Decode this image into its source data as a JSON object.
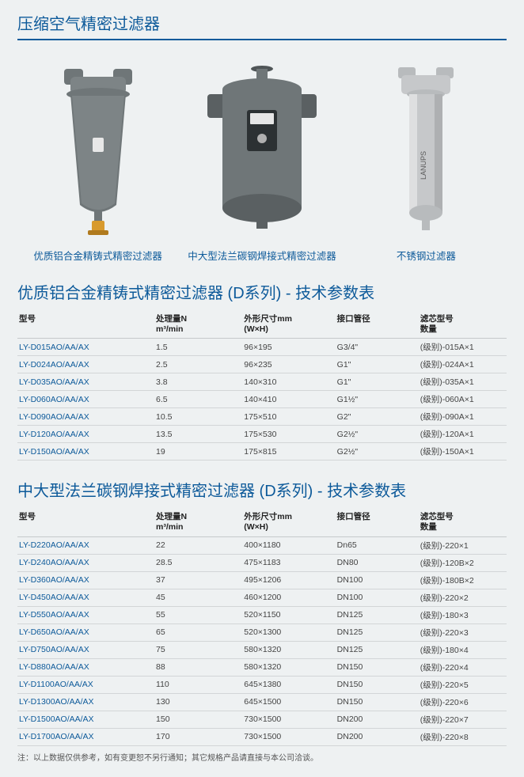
{
  "page_title": "压缩空气精密过滤器",
  "products": [
    {
      "caption": "优质铝合金精铸式精密过滤器"
    },
    {
      "caption": "中大型法兰碳钢焊接式精密过滤器"
    },
    {
      "caption": "不锈钢过滤器"
    }
  ],
  "section1": {
    "title": "优质铝合金精铸式精密过滤器 (D系列) - 技术参数表",
    "headers": {
      "model": "型号",
      "flow_line1": "处理量N",
      "flow_line2": "m³/min",
      "dim_line1": "外形尺寸mm",
      "dim_line2": "(W×H)",
      "port": "接口管径",
      "filter_line1": "滤芯型号",
      "filter_line2": "数量"
    },
    "rows": [
      {
        "model": "LY-D015AO/AA/AX",
        "flow": "1.5",
        "dim": "96×195",
        "port": "G3/4\"",
        "filter": "(级别)-015A×1"
      },
      {
        "model": "LY-D024AO/AA/AX",
        "flow": "2.5",
        "dim": "96×235",
        "port": "G1\"",
        "filter": "(级别)-024A×1"
      },
      {
        "model": "LY-D035AO/AA/AX",
        "flow": "3.8",
        "dim": "140×310",
        "port": "G1\"",
        "filter": "(级别)-035A×1"
      },
      {
        "model": "LY-D060AO/AA/AX",
        "flow": "6.5",
        "dim": "140×410",
        "port": "G1½\"",
        "filter": "(级别)-060A×1"
      },
      {
        "model": "LY-D090AO/AA/AX",
        "flow": "10.5",
        "dim": "175×510",
        "port": "G2\"",
        "filter": "(级别)-090A×1"
      },
      {
        "model": "LY-D120AO/AA/AX",
        "flow": "13.5",
        "dim": "175×530",
        "port": "G2½\"",
        "filter": "(级别)-120A×1"
      },
      {
        "model": "LY-D150AO/AA/AX",
        "flow": "19",
        "dim": "175×815",
        "port": "G2½\"",
        "filter": "(级别)-150A×1"
      }
    ]
  },
  "section2": {
    "title": "中大型法兰碳钢焊接式精密过滤器 (D系列) - 技术参数表",
    "headers": {
      "model": "型号",
      "flow_line1": "处理量N",
      "flow_line2": "m³/min",
      "dim_line1": "外形尺寸mm",
      "dim_line2": "(W×H)",
      "port": "接口管径",
      "filter_line1": "滤芯型号",
      "filter_line2": "数量"
    },
    "rows": [
      {
        "model": "LY-D220AO/AA/AX",
        "flow": "22",
        "dim": "400×1180",
        "port": "Dn65",
        "filter": "(级别)-220×1"
      },
      {
        "model": "LY-D240AO/AA/AX",
        "flow": "28.5",
        "dim": "475×1183",
        "port": "DN80",
        "filter": "(级别)-120B×2"
      },
      {
        "model": "LY-D360AO/AA/AX",
        "flow": "37",
        "dim": "495×1206",
        "port": "DN100",
        "filter": "(级别)-180B×2"
      },
      {
        "model": "LY-D450AO/AA/AX",
        "flow": "45",
        "dim": "460×1200",
        "port": "DN100",
        "filter": "(级别)-220×2"
      },
      {
        "model": "LY-D550AO/AA/AX",
        "flow": "55",
        "dim": "520×1150",
        "port": "DN125",
        "filter": "(级别)-180×3"
      },
      {
        "model": "LY-D650AO/AA/AX",
        "flow": "65",
        "dim": "520×1300",
        "port": "DN125",
        "filter": "(级别)-220×3"
      },
      {
        "model": "LY-D750AO/AA/AX",
        "flow": "75",
        "dim": "580×1320",
        "port": "DN125",
        "filter": "(级别)-180×4"
      },
      {
        "model": "LY-D880AO/AA/AX",
        "flow": "88",
        "dim": "580×1320",
        "port": "DN150",
        "filter": "(级别)-220×4"
      },
      {
        "model": "LY-D1100AO/AA/AX",
        "flow": "110",
        "dim": "645×1380",
        "port": "DN150",
        "filter": "(级别)-220×5"
      },
      {
        "model": "LY-D1300AO/AA/AX",
        "flow": "130",
        "dim": "645×1500",
        "port": "DN150",
        "filter": "(级别)-220×6"
      },
      {
        "model": "LY-D1500AO/AA/AX",
        "flow": "150",
        "dim": "730×1500",
        "port": "DN200",
        "filter": "(级别)-220×7"
      },
      {
        "model": "LY-D1700AO/AA/AX",
        "flow": "170",
        "dim": "730×1500",
        "port": "DN200",
        "filter": "(级别)-220×8"
      }
    ]
  },
  "footnote": "注：以上数据仅供参考，如有变更恕不另行通知；其它规格产品请直接与本公司洽谈。",
  "colors": {
    "brand": "#0d5a9a",
    "background": "#eef1f2",
    "grey_body": "#6f7678",
    "steel": "#c6c8ca",
    "brass": "#d89a2e"
  }
}
